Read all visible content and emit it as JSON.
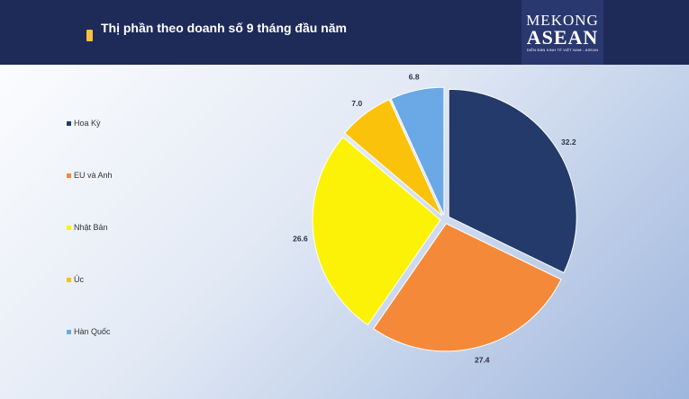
{
  "header": {
    "title": "Thị phần theo doanh số 9 tháng đầu năm",
    "background": "#1e2a58",
    "marker_color": "#f5c23a"
  },
  "logo": {
    "top": "MEKONG",
    "main": "ASEAN",
    "sub": "DIỄN ĐÀN KINH TẾ VIỆT NAM - ASEAN"
  },
  "chart_data": {
    "type": "pie",
    "title": "Thị phần theo doanh số 9 tháng đầu năm",
    "categories": [
      "Hoa Kỳ",
      "EU và Anh",
      "Nhật Bản",
      "Úc",
      "Hàn Quốc"
    ],
    "values": [
      32.2,
      27.4,
      26.6,
      7.0,
      6.8
    ],
    "labels": [
      "32.2",
      "27.4",
      "26.6",
      "7.0",
      "6.8"
    ],
    "colors": [
      "#243a6b",
      "#f5893a",
      "#fbf207",
      "#fbc20b",
      "#6aa9e5"
    ],
    "legend_position": "left",
    "start_angle": "12 o'clock, clockwise"
  }
}
